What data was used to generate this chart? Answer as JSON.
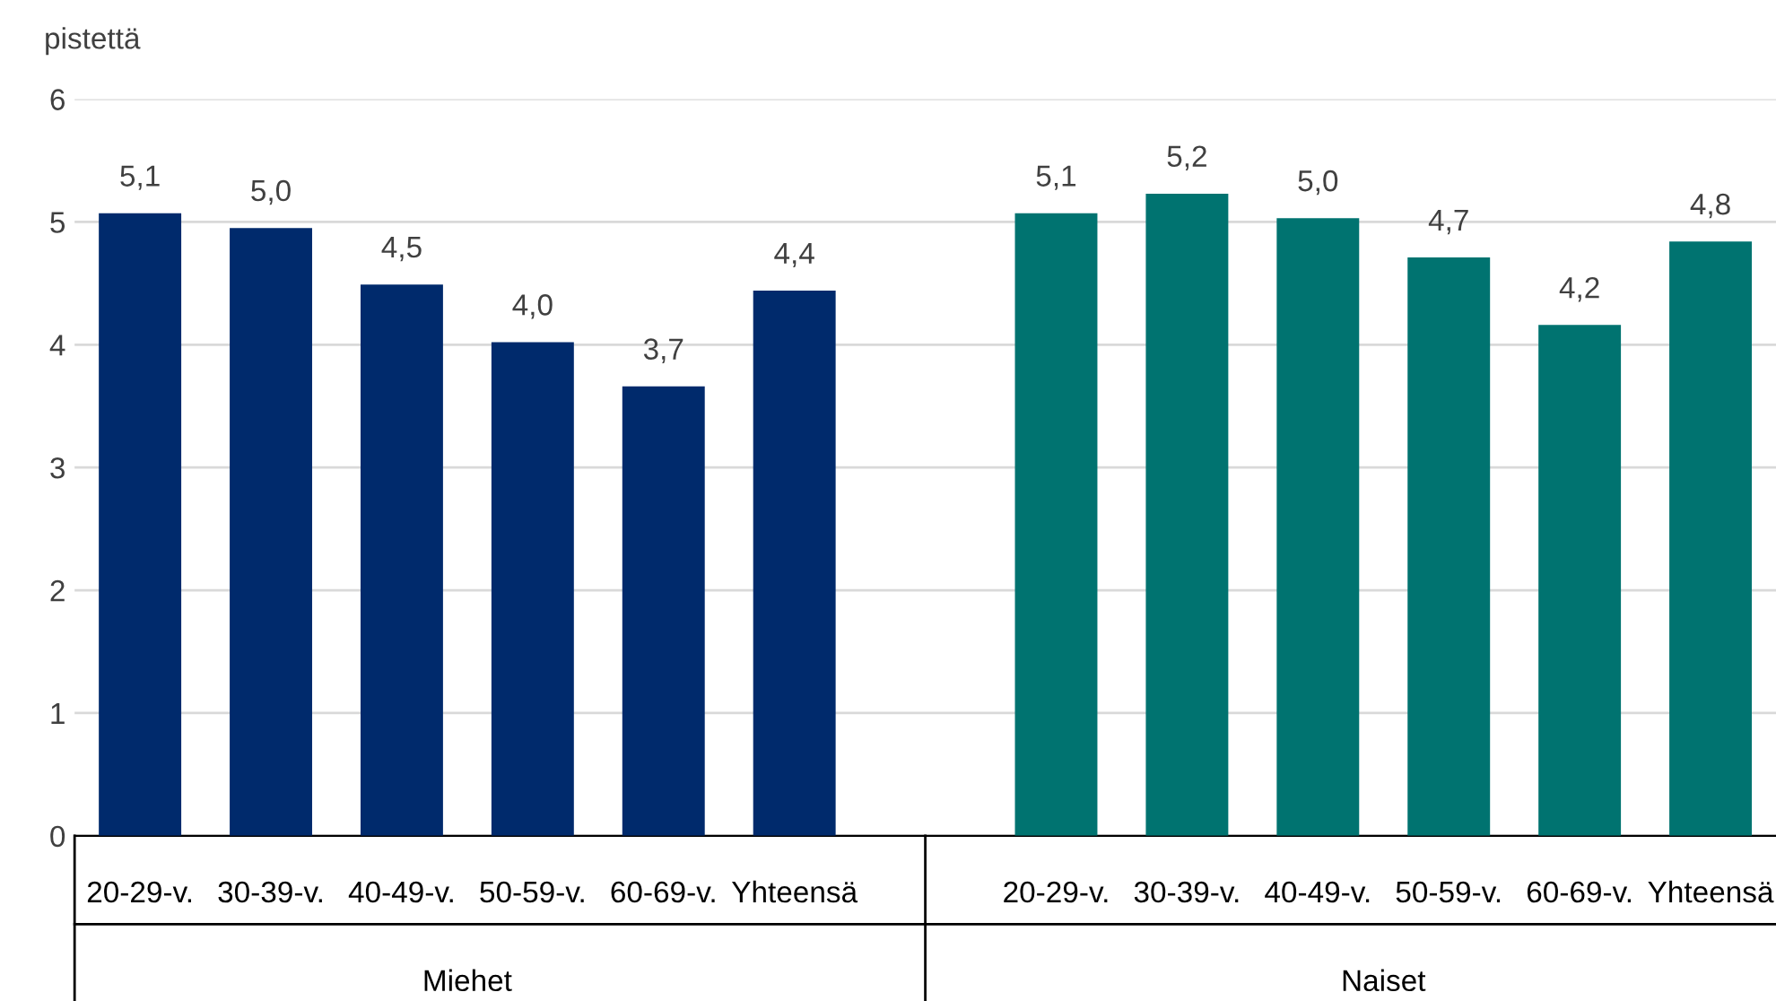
{
  "chart_data": {
    "type": "bar",
    "ylabel": "pistettä",
    "categories": [
      "20-29-v.",
      "30-39-v.",
      "40-49-v.",
      "50-59-v.",
      "60-69-v.",
      "Yhteensä",
      null,
      "20-29-v.",
      "30-39-v.",
      "40-49-v.",
      "50-59-v.",
      "60-69-v.",
      "Yhteensä"
    ],
    "values": [
      5.07,
      4.95,
      4.49,
      4.02,
      3.66,
      4.44,
      null,
      5.07,
      5.23,
      5.03,
      4.71,
      4.16,
      4.84
    ],
    "colors": [
      "#002a6c",
      "#002a6c",
      "#002a6c",
      "#002a6c",
      "#002a6c",
      "#002a6c",
      null,
      "#007370",
      "#007370",
      "#007370",
      "#007370",
      "#007370",
      "#007370"
    ],
    "value_labels": [
      "5,1",
      "5,0",
      "4,5",
      "4,0",
      "3,7",
      "4,4",
      null,
      "5,1",
      "5,2",
      "5,0",
      "4,7",
      "4,2",
      "4,8"
    ],
    "annotations": [
      "Miehet",
      "Naiset"
    ],
    "ylim": [
      0,
      6
    ],
    "yticks": [
      0,
      1,
      2,
      3,
      4,
      5,
      6
    ],
    "grid": "y",
    "legend": false
  }
}
